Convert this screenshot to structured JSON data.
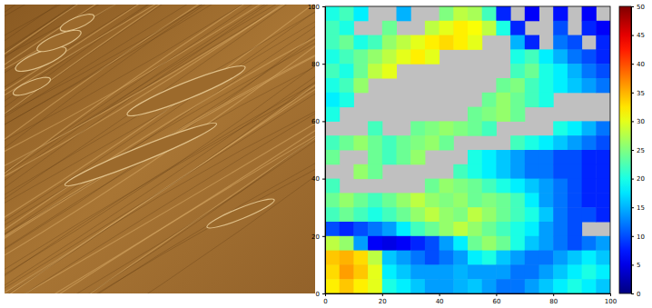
{
  "chart_data": {
    "type": "heatmap",
    "xlim": [
      0,
      100
    ],
    "ylim": [
      0,
      100
    ],
    "xticks": [
      0,
      20,
      40,
      60,
      80,
      100
    ],
    "yticks": [
      0,
      20,
      40,
      60,
      80,
      100
    ],
    "zlim": [
      0,
      50
    ],
    "zticks": [
      0,
      5,
      10,
      15,
      20,
      25,
      30,
      35,
      40,
      45,
      50
    ],
    "x": [
      2.5,
      7.5,
      12.5,
      17.5,
      22.5,
      27.5,
      32.5,
      37.5,
      42.5,
      47.5,
      52.5,
      57.5,
      62.5,
      67.5,
      72.5,
      77.5,
      82.5,
      87.5,
      92.5,
      97.5
    ],
    "y": [
      97.5,
      92.5,
      87.5,
      82.5,
      77.5,
      72.5,
      67.5,
      62.5,
      57.5,
      52.5,
      47.5,
      42.5,
      37.5,
      32.5,
      27.5,
      22.5,
      17.5,
      12.5,
      7.5,
      2.5
    ],
    "z": [
      [
        20,
        22,
        18,
        null,
        null,
        15,
        null,
        null,
        25,
        28,
        27,
        22,
        8,
        null,
        6,
        null,
        7,
        null,
        6,
        null
      ],
      [
        22,
        20,
        null,
        null,
        24,
        null,
        null,
        28,
        30,
        32,
        31,
        28,
        20,
        8,
        null,
        null,
        10,
        null,
        8,
        6
      ],
      [
        22,
        24,
        20,
        22,
        26,
        28,
        30,
        32,
        33,
        32,
        30,
        null,
        null,
        15,
        8,
        null,
        12,
        10,
        null,
        8
      ],
      [
        20,
        22,
        24,
        26,
        28,
        30,
        32,
        30,
        null,
        null,
        null,
        null,
        null,
        20,
        22,
        18,
        15,
        12,
        10,
        8
      ],
      [
        22,
        20,
        24,
        28,
        30,
        null,
        null,
        null,
        null,
        null,
        null,
        null,
        null,
        22,
        24,
        20,
        18,
        15,
        12,
        10
      ],
      [
        20,
        22,
        26,
        null,
        null,
        null,
        null,
        null,
        null,
        null,
        null,
        null,
        24,
        25,
        22,
        20,
        18,
        16,
        14,
        12
      ],
      [
        18,
        20,
        null,
        null,
        null,
        null,
        null,
        null,
        null,
        null,
        null,
        24,
        26,
        24,
        22,
        20,
        null,
        null,
        null,
        null
      ],
      [
        20,
        null,
        null,
        null,
        null,
        null,
        null,
        null,
        null,
        null,
        24,
        25,
        26,
        24,
        null,
        null,
        null,
        null,
        null,
        null
      ],
      [
        null,
        null,
        null,
        22,
        null,
        null,
        24,
        25,
        26,
        25,
        24,
        22,
        null,
        null,
        null,
        null,
        20,
        18,
        15,
        12
      ],
      [
        22,
        24,
        26,
        24,
        22,
        24,
        25,
        26,
        24,
        null,
        null,
        null,
        null,
        22,
        20,
        18,
        16,
        14,
        12,
        10
      ],
      [
        24,
        null,
        null,
        24,
        22,
        24,
        26,
        null,
        null,
        null,
        20,
        18,
        16,
        14,
        12,
        12,
        10,
        10,
        8,
        8
      ],
      [
        null,
        null,
        26,
        24,
        null,
        null,
        null,
        null,
        null,
        22,
        20,
        18,
        16,
        14,
        12,
        12,
        10,
        10,
        8,
        8
      ],
      [
        22,
        null,
        null,
        null,
        null,
        null,
        null,
        24,
        26,
        25,
        24,
        22,
        20,
        18,
        16,
        14,
        12,
        10,
        8,
        8
      ],
      [
        24,
        26,
        24,
        22,
        24,
        26,
        28,
        26,
        25,
        26,
        24,
        25,
        24,
        22,
        18,
        14,
        12,
        10,
        8,
        8
      ],
      [
        22,
        24,
        22,
        20,
        22,
        24,
        26,
        28,
        26,
        25,
        28,
        26,
        24,
        22,
        20,
        16,
        12,
        10,
        10,
        8
      ],
      [
        10,
        8,
        10,
        12,
        14,
        18,
        22,
        24,
        26,
        28,
        26,
        24,
        22,
        20,
        18,
        14,
        12,
        10,
        null,
        null
      ],
      [
        28,
        26,
        14,
        6,
        5,
        6,
        8,
        10,
        14,
        18,
        24,
        26,
        24,
        20,
        16,
        14,
        12,
        10,
        12,
        14
      ],
      [
        34,
        35,
        33,
        28,
        16,
        14,
        12,
        10,
        12,
        14,
        18,
        20,
        16,
        14,
        12,
        12,
        14,
        16,
        18,
        16
      ],
      [
        33,
        36,
        34,
        30,
        18,
        16,
        14,
        14,
        14,
        15,
        14,
        14,
        14,
        12,
        12,
        14,
        16,
        18,
        20,
        18
      ],
      [
        32,
        34,
        32,
        30,
        20,
        18,
        16,
        14,
        14,
        15,
        16,
        14,
        12,
        12,
        14,
        16,
        18,
        20,
        18,
        16
      ]
    ]
  }
}
